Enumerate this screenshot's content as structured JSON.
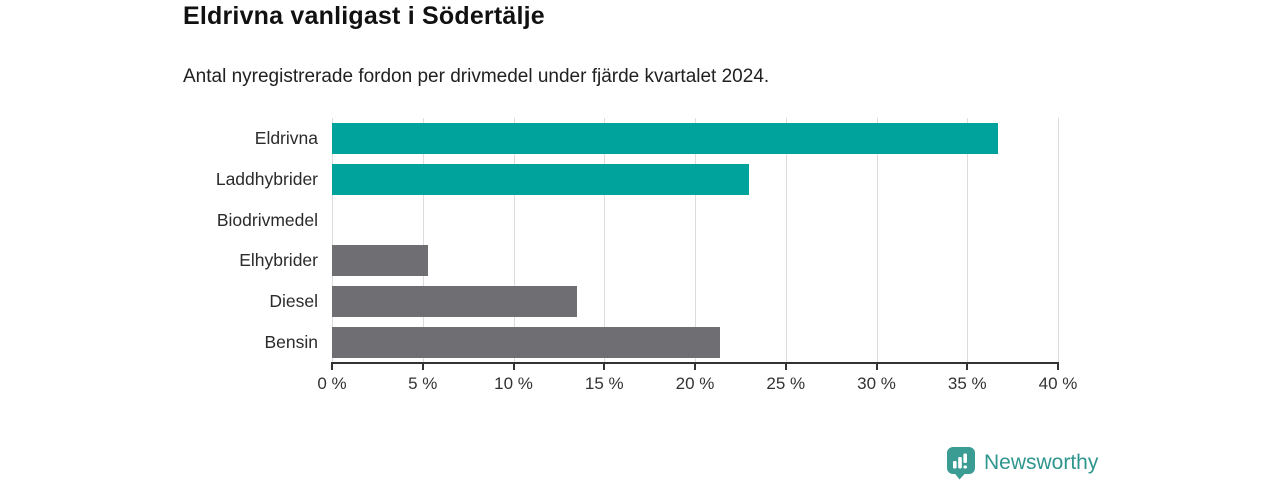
{
  "header": {
    "title": "Eldrivna vanligast i Södertälje",
    "subtitle": "Antal nyregistrerade fordon per drivmedel under fjärde kvartalet 2024."
  },
  "chart_data": {
    "type": "bar",
    "orientation": "horizontal",
    "title": "Eldrivna vanligast i Södertälje",
    "subtitle": "Antal nyregistrerade fordon per drivmedel under fjärde kvartalet 2024.",
    "categories": [
      "Eldrivna",
      "Laddhybrider",
      "Biodrivmedel",
      "Elhybrider",
      "Diesel",
      "Bensin"
    ],
    "values": [
      36.7,
      23.0,
      0,
      5.3,
      13.5,
      21.4
    ],
    "unit": "%",
    "bar_colors": [
      "#00a39c",
      "#00a39c",
      "#00a39c",
      "#6e6e73",
      "#6e6e73",
      "#6e6e73"
    ],
    "xlabel": "",
    "ylabel": "",
    "xlim": [
      0,
      40
    ],
    "x_tick_values": [
      0,
      5,
      10,
      15,
      20,
      25,
      30,
      35,
      40
    ],
    "x_tick_labels": [
      "0 %",
      "5 %",
      "10 %",
      "15 %",
      "20 %",
      "25 %",
      "30 %",
      "35 %",
      "40 %"
    ],
    "grid": "vertical-gridlines-on",
    "legend": "none"
  },
  "colors": {
    "accent_teal": "#00a39c",
    "bar_gray": "#6e6e73",
    "axis": "#333333",
    "gridline": "#dcdcdc",
    "logo_teal": "#3a9c92",
    "background": "#ffffff"
  },
  "branding": {
    "logo_text": "Newsworthy"
  }
}
